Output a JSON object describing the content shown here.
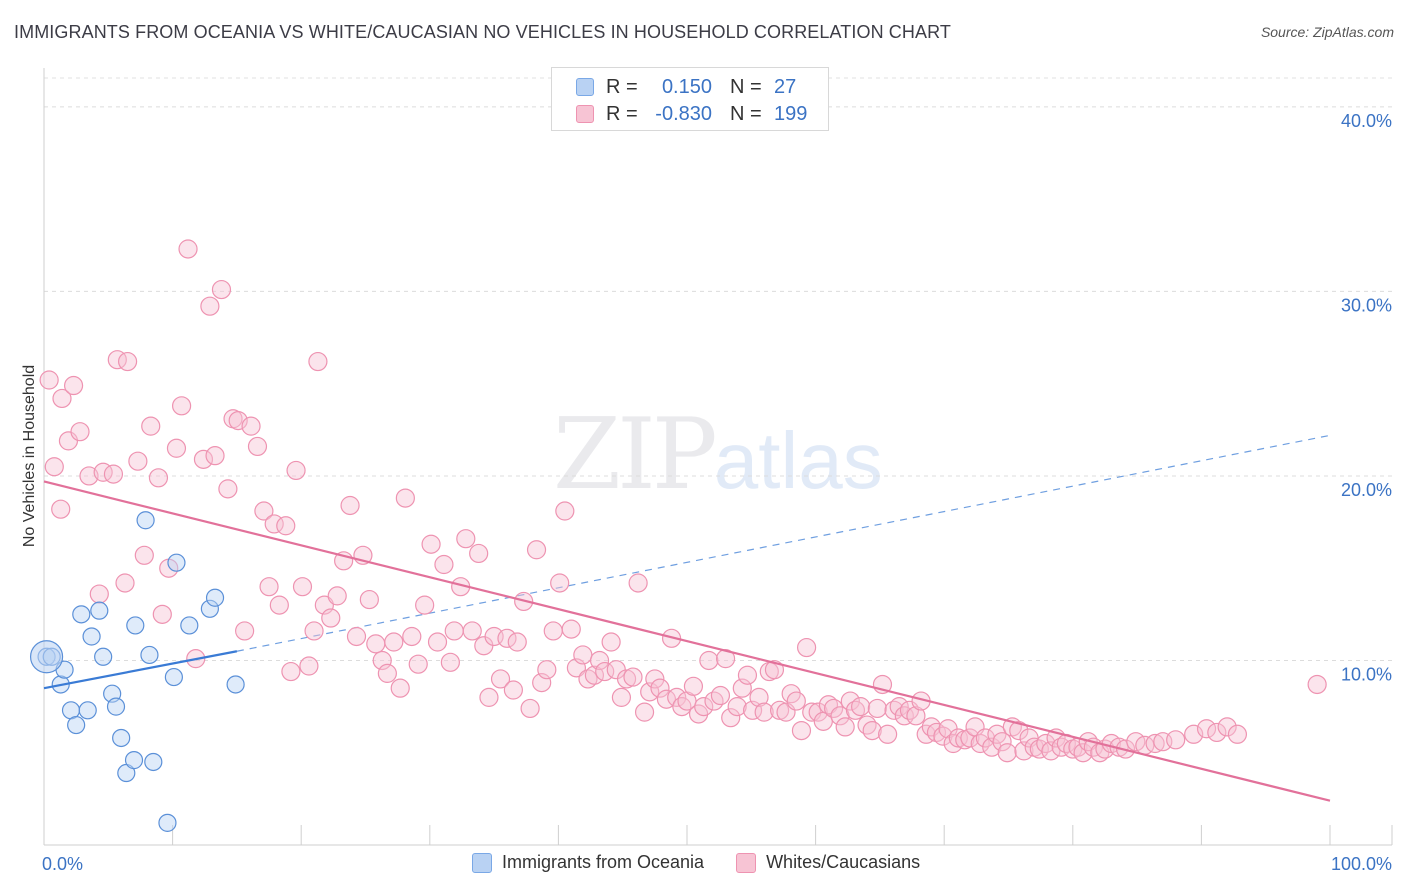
{
  "title": "IMMIGRANTS FROM OCEANIA VS WHITE/CAUCASIAN NO VEHICLES IN HOUSEHOLD CORRELATION CHART",
  "source": "Source: ZipAtlas.com",
  "watermark": {
    "zip": "ZIP",
    "atlas": "atlas"
  },
  "legend": {
    "rows": [
      {
        "r_label": "R =",
        "r_value": "0.150",
        "n_label": "N =",
        "n_value": "27",
        "color": "#7aa8e6",
        "fill": "#b9d2f3"
      },
      {
        "r_label": "R =",
        "r_value": "-0.830",
        "n_label": "N =",
        "n_value": "199",
        "color": "#ee93b1",
        "fill": "#f7c4d4"
      }
    ]
  },
  "bottom_legend": [
    {
      "label": "Immigrants from Oceania",
      "color": "#7aa8e6",
      "fill": "#b9d2f3"
    },
    {
      "label": "Whites/Caucasians",
      "color": "#ee93b1",
      "fill": "#f7c4d4"
    }
  ],
  "chart_data": {
    "type": "scatter",
    "title": "IMMIGRANTS FROM OCEANIA VS WHITE/CAUCASIAN NO VEHICLES IN HOUSEHOLD CORRELATION CHART",
    "xlabel": "",
    "ylabel": "No Vehicles in Household",
    "xlim": [
      0,
      100
    ],
    "ylim": [
      0,
      42
    ],
    "x_tick_labels": [
      "0.0%",
      "100.0%"
    ],
    "y_ticks": [
      10,
      20,
      30,
      40
    ],
    "y_tick_labels": [
      "10.0%",
      "20.0%",
      "30.0%",
      "40.0%"
    ],
    "grid": true,
    "legend_position": "top-center",
    "series": [
      {
        "name": "Immigrants from Oceania",
        "color": "#5b90d8",
        "points": [
          [
            0.2,
            10.2
          ],
          [
            0.6,
            10.2
          ],
          [
            1.3,
            8.7
          ],
          [
            1.6,
            9.5
          ],
          [
            2.1,
            7.3
          ],
          [
            2.5,
            6.5
          ],
          [
            2.9,
            12.5
          ],
          [
            3.4,
            7.3
          ],
          [
            3.7,
            11.3
          ],
          [
            4.3,
            12.7
          ],
          [
            4.6,
            10.2
          ],
          [
            5.3,
            8.2
          ],
          [
            5.6,
            7.5
          ],
          [
            6.0,
            5.8
          ],
          [
            6.4,
            3.9
          ],
          [
            7.0,
            4.6
          ],
          [
            7.1,
            11.9
          ],
          [
            7.9,
            17.6
          ],
          [
            8.2,
            10.3
          ],
          [
            8.5,
            4.5
          ],
          [
            9.6,
            1.2
          ],
          [
            10.1,
            9.1
          ],
          [
            10.3,
            15.3
          ],
          [
            11.3,
            11.9
          ],
          [
            12.9,
            12.8
          ],
          [
            13.3,
            13.4
          ],
          [
            14.9,
            8.7
          ]
        ],
        "trend": {
          "x": [
            0,
            15
          ],
          "y": [
            8.5,
            10.5
          ],
          "dashed_extension": {
            "x": [
              15,
              100
            ],
            "y": [
              10.5,
              22.2
            ]
          }
        }
      },
      {
        "name": "Whites/Caucasians",
        "color": "#ee93b1",
        "points": [
          [
            0.4,
            25.2
          ],
          [
            0.8,
            20.5
          ],
          [
            1.3,
            18.2
          ],
          [
            1.4,
            24.2
          ],
          [
            1.9,
            21.9
          ],
          [
            2.3,
            24.9
          ],
          [
            2.8,
            22.4
          ],
          [
            3.5,
            20.0
          ],
          [
            4.3,
            13.6
          ],
          [
            4.6,
            20.2
          ],
          [
            5.4,
            20.1
          ],
          [
            5.7,
            26.3
          ],
          [
            6.3,
            14.2
          ],
          [
            6.5,
            26.2
          ],
          [
            7.3,
            20.8
          ],
          [
            7.8,
            15.7
          ],
          [
            8.3,
            22.7
          ],
          [
            8.9,
            19.9
          ],
          [
            9.2,
            12.5
          ],
          [
            9.7,
            15.0
          ],
          [
            10.3,
            21.5
          ],
          [
            10.7,
            23.8
          ],
          [
            11.2,
            32.3
          ],
          [
            11.8,
            10.1
          ],
          [
            12.4,
            20.9
          ],
          [
            12.9,
            29.2
          ],
          [
            13.3,
            21.1
          ],
          [
            13.8,
            30.1
          ],
          [
            14.3,
            19.3
          ],
          [
            14.7,
            23.1
          ],
          [
            15.1,
            23.0
          ],
          [
            15.6,
            11.6
          ],
          [
            16.1,
            22.7
          ],
          [
            16.6,
            21.6
          ],
          [
            17.1,
            18.1
          ],
          [
            17.5,
            14.0
          ],
          [
            17.9,
            17.4
          ],
          [
            18.3,
            13.0
          ],
          [
            18.8,
            17.3
          ],
          [
            19.2,
            9.4
          ],
          [
            19.6,
            20.3
          ],
          [
            20.1,
            14.0
          ],
          [
            20.6,
            9.7
          ],
          [
            21.0,
            11.6
          ],
          [
            21.3,
            26.2
          ],
          [
            21.8,
            13.0
          ],
          [
            22.3,
            12.3
          ],
          [
            22.8,
            13.5
          ],
          [
            23.3,
            15.4
          ],
          [
            23.8,
            18.4
          ],
          [
            24.3,
            11.3
          ],
          [
            24.8,
            15.7
          ],
          [
            25.3,
            13.3
          ],
          [
            25.8,
            10.9
          ],
          [
            26.3,
            10.0
          ],
          [
            26.7,
            9.3
          ],
          [
            27.2,
            11.0
          ],
          [
            27.7,
            8.5
          ],
          [
            28.1,
            18.8
          ],
          [
            28.6,
            11.3
          ],
          [
            29.1,
            9.8
          ],
          [
            29.6,
            13.0
          ],
          [
            30.1,
            16.3
          ],
          [
            30.6,
            11.0
          ],
          [
            31.1,
            15.2
          ],
          [
            31.6,
            9.9
          ],
          [
            31.9,
            11.6
          ],
          [
            32.4,
            14.0
          ],
          [
            32.8,
            16.6
          ],
          [
            33.3,
            11.6
          ],
          [
            33.8,
            15.8
          ],
          [
            34.2,
            10.8
          ],
          [
            34.6,
            8.0
          ],
          [
            35.0,
            11.3
          ],
          [
            35.5,
            9.0
          ],
          [
            36.0,
            11.2
          ],
          [
            36.5,
            8.4
          ],
          [
            36.8,
            11.0
          ],
          [
            37.3,
            13.2
          ],
          [
            37.8,
            7.4
          ],
          [
            38.3,
            16.0
          ],
          [
            38.7,
            8.8
          ],
          [
            39.1,
            9.5
          ],
          [
            39.6,
            11.6
          ],
          [
            40.1,
            14.2
          ],
          [
            40.5,
            18.1
          ],
          [
            41.0,
            11.7
          ],
          [
            41.4,
            9.6
          ],
          [
            41.9,
            10.3
          ],
          [
            42.3,
            9.0
          ],
          [
            42.8,
            9.2
          ],
          [
            43.2,
            10.0
          ],
          [
            43.6,
            9.4
          ],
          [
            44.1,
            11.0
          ],
          [
            44.5,
            9.5
          ],
          [
            44.9,
            8.0
          ],
          [
            45.3,
            9.0
          ],
          [
            45.8,
            9.1
          ],
          [
            46.2,
            14.2
          ],
          [
            46.7,
            7.2
          ],
          [
            47.1,
            8.3
          ],
          [
            47.5,
            9.0
          ],
          [
            47.9,
            8.5
          ],
          [
            48.4,
            7.9
          ],
          [
            48.8,
            11.2
          ],
          [
            49.2,
            8.0
          ],
          [
            49.6,
            7.5
          ],
          [
            50.0,
            7.8
          ],
          [
            50.5,
            8.6
          ],
          [
            50.9,
            7.1
          ],
          [
            51.3,
            7.5
          ],
          [
            51.7,
            10.0
          ],
          [
            52.1,
            7.8
          ],
          [
            52.6,
            8.1
          ],
          [
            53.0,
            10.1
          ],
          [
            53.4,
            6.9
          ],
          [
            53.9,
            7.5
          ],
          [
            54.3,
            8.5
          ],
          [
            54.7,
            9.2
          ],
          [
            55.1,
            7.3
          ],
          [
            55.6,
            8.0
          ],
          [
            56.0,
            7.2
          ],
          [
            56.4,
            9.4
          ],
          [
            56.8,
            9.5
          ],
          [
            57.2,
            7.3
          ],
          [
            57.7,
            7.2
          ],
          [
            58.1,
            8.2
          ],
          [
            58.5,
            7.8
          ],
          [
            58.9,
            6.2
          ],
          [
            59.3,
            10.7
          ],
          [
            59.7,
            7.2
          ],
          [
            60.2,
            7.2
          ],
          [
            60.6,
            6.7
          ],
          [
            61.0,
            7.6
          ],
          [
            61.4,
            7.4
          ],
          [
            61.9,
            7.0
          ],
          [
            62.3,
            6.4
          ],
          [
            62.7,
            7.8
          ],
          [
            63.1,
            7.3
          ],
          [
            63.5,
            7.5
          ],
          [
            64.0,
            6.5
          ],
          [
            64.4,
            6.2
          ],
          [
            64.8,
            7.4
          ],
          [
            65.2,
            8.7
          ],
          [
            65.6,
            6.0
          ],
          [
            66.1,
            7.3
          ],
          [
            66.5,
            7.5
          ],
          [
            66.9,
            7.0
          ],
          [
            67.3,
            7.3
          ],
          [
            67.8,
            7.0
          ],
          [
            68.2,
            7.8
          ],
          [
            68.6,
            6.0
          ],
          [
            69.0,
            6.4
          ],
          [
            69.4,
            6.1
          ],
          [
            69.9,
            5.9
          ],
          [
            70.3,
            6.3
          ],
          [
            70.7,
            5.5
          ],
          [
            71.1,
            5.8
          ],
          [
            71.6,
            5.7
          ],
          [
            72.0,
            5.8
          ],
          [
            72.4,
            6.4
          ],
          [
            72.8,
            5.5
          ],
          [
            73.2,
            5.8
          ],
          [
            73.7,
            5.3
          ],
          [
            74.1,
            6.0
          ],
          [
            74.5,
            5.6
          ],
          [
            74.9,
            5.0
          ],
          [
            75.3,
            6.4
          ],
          [
            75.8,
            6.2
          ],
          [
            76.2,
            5.1
          ],
          [
            76.6,
            5.8
          ],
          [
            77.0,
            5.3
          ],
          [
            77.4,
            5.2
          ],
          [
            77.9,
            5.5
          ],
          [
            78.3,
            5.1
          ],
          [
            78.7,
            5.8
          ],
          [
            79.1,
            5.3
          ],
          [
            79.5,
            5.5
          ],
          [
            80.0,
            5.2
          ],
          [
            80.4,
            5.3
          ],
          [
            80.8,
            5.0
          ],
          [
            81.2,
            5.6
          ],
          [
            81.6,
            5.3
          ],
          [
            82.1,
            5.0
          ],
          [
            82.5,
            5.2
          ],
          [
            83.0,
            5.5
          ],
          [
            83.6,
            5.3
          ],
          [
            84.1,
            5.2
          ],
          [
            84.9,
            5.6
          ],
          [
            85.6,
            5.4
          ],
          [
            86.4,
            5.5
          ],
          [
            87.0,
            5.6
          ],
          [
            88.0,
            5.7
          ],
          [
            89.4,
            6.0
          ],
          [
            90.4,
            6.3
          ],
          [
            91.2,
            6.1
          ],
          [
            92.0,
            6.4
          ],
          [
            92.8,
            6.0
          ],
          [
            99.0,
            8.7
          ]
        ],
        "trend": {
          "x": [
            0,
            100
          ],
          "y": [
            19.7,
            2.4
          ]
        }
      }
    ]
  }
}
